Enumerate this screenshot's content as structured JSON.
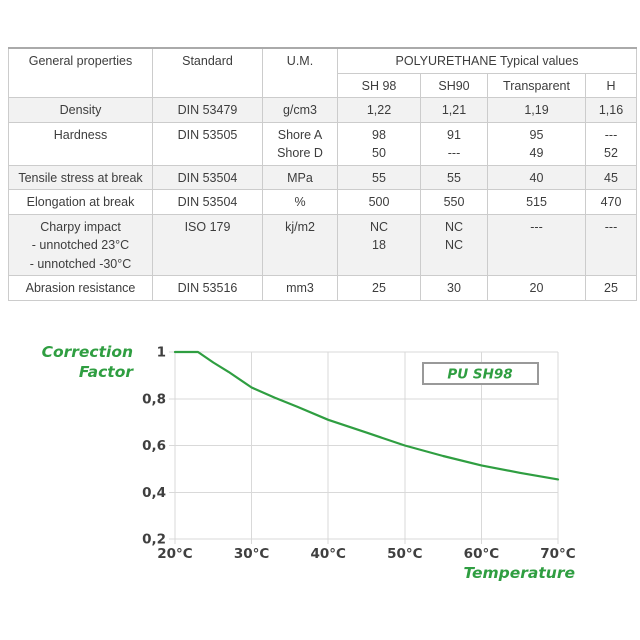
{
  "table": {
    "header": {
      "general": "General properties",
      "standard": "Standard",
      "um": "U.M.",
      "group": "POLYURETHANE Typical values",
      "subcols": [
        "SH 98",
        "SH90",
        "Transparent",
        "H"
      ]
    },
    "rows": [
      {
        "property": [
          "Density"
        ],
        "standard": "DIN 53479",
        "um": [
          "g/cm3"
        ],
        "values": [
          [
            "1,22"
          ],
          [
            "1,21"
          ],
          [
            "1,19"
          ],
          [
            "1,16"
          ]
        ]
      },
      {
        "property": [
          "Hardness"
        ],
        "standard": "DIN 53505",
        "um": [
          "Shore A",
          "Shore D"
        ],
        "values": [
          [
            "98",
            "50"
          ],
          [
            "91",
            "---"
          ],
          [
            "95",
            "49"
          ],
          [
            "---",
            "52"
          ]
        ]
      },
      {
        "property": [
          "Tensile stress at break"
        ],
        "standard": "DIN 53504",
        "um": [
          "MPa"
        ],
        "values": [
          [
            "55"
          ],
          [
            "55"
          ],
          [
            "40"
          ],
          [
            "45"
          ]
        ]
      },
      {
        "property": [
          "Elongation at break"
        ],
        "standard": "DIN 53504",
        "um": [
          "%"
        ],
        "values": [
          [
            "500"
          ],
          [
            "550"
          ],
          [
            "515"
          ],
          [
            "470"
          ]
        ]
      },
      {
        "property": [
          "Charpy impact",
          "- unnotched 23°C",
          "- unnotched -30°C"
        ],
        "standard": "ISO 179",
        "um": [
          "kj/m2"
        ],
        "values": [
          [
            "NC",
            "18"
          ],
          [
            "NC",
            "NC"
          ],
          [
            "---"
          ],
          [
            "---"
          ]
        ]
      },
      {
        "property": [
          "Abrasion resistance"
        ],
        "standard": "DIN 53516",
        "um": [
          "mm3"
        ],
        "values": [
          [
            "25"
          ],
          [
            "30"
          ],
          [
            "20"
          ],
          [
            "25"
          ]
        ]
      }
    ]
  },
  "chart_data": {
    "type": "line",
    "title": "Correction Factor",
    "title_lines": [
      "Correction",
      "Factor"
    ],
    "xlabel": "Temperature",
    "legend": "PU SH98",
    "x_ticks": [
      "20°C",
      "30°C",
      "40°C",
      "50°C",
      "60°C",
      "70°C"
    ],
    "x_tick_values": [
      20,
      30,
      40,
      50,
      60,
      70
    ],
    "y_ticks": [
      "1",
      "0,8",
      "0,6",
      "0,4",
      "0,2"
    ],
    "y_tick_values": [
      1,
      0.8,
      0.6,
      0.4,
      0.2
    ],
    "xlim": [
      20,
      70
    ],
    "ylim": [
      0.2,
      1.0
    ],
    "grid": true,
    "legend_position": "upper-right",
    "series": [
      {
        "name": "PU SH98",
        "color": "#2f9e41",
        "x": [
          20,
          23,
          25,
          27,
          30,
          33,
          36,
          40,
          45,
          50,
          55,
          60,
          65,
          70
        ],
        "y": [
          1.0,
          1.0,
          0.955,
          0.915,
          0.848,
          0.805,
          0.765,
          0.71,
          0.655,
          0.6,
          0.555,
          0.515,
          0.483,
          0.455
        ]
      }
    ]
  },
  "colors": {
    "green": "#2f9e41",
    "grid": "#d9d9d9",
    "tick_text": "#3f3f3f",
    "row_shade": "#f2f2f2",
    "table_border": "#cccccc"
  }
}
